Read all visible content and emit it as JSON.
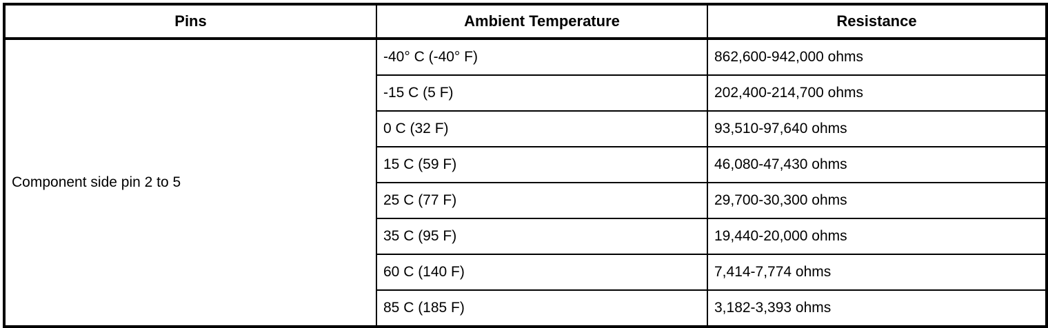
{
  "table": {
    "headers": {
      "pins": "Pins",
      "temperature": "Ambient Temperature",
      "resistance": "Resistance"
    },
    "pins_value": "Component side pin 2 to 5",
    "rows": [
      {
        "temperature": "-40° C (-40° F)",
        "resistance": "862,600-942,000 ohms"
      },
      {
        "temperature": "-15 C (5 F)",
        "resistance": "202,400-214,700 ohms"
      },
      {
        "temperature": "0 C (32 F)",
        "resistance": "93,510-97,640 ohms"
      },
      {
        "temperature": "15 C (59 F)",
        "resistance": "46,080-47,430 ohms"
      },
      {
        "temperature": "25 C (77 F)",
        "resistance": "29,700-30,300 ohms"
      },
      {
        "temperature": "35 C (95 F)",
        "resistance": "19,440-20,000 ohms"
      },
      {
        "temperature": "60 C (140 F)",
        "resistance": "7,414-7,774 ohms"
      },
      {
        "temperature": "85 C (185 F)",
        "resistance": "3,182-3,393 ohms"
      }
    ],
    "colors": {
      "border": "#000000",
      "background": "#ffffff",
      "text": "#000000"
    }
  }
}
